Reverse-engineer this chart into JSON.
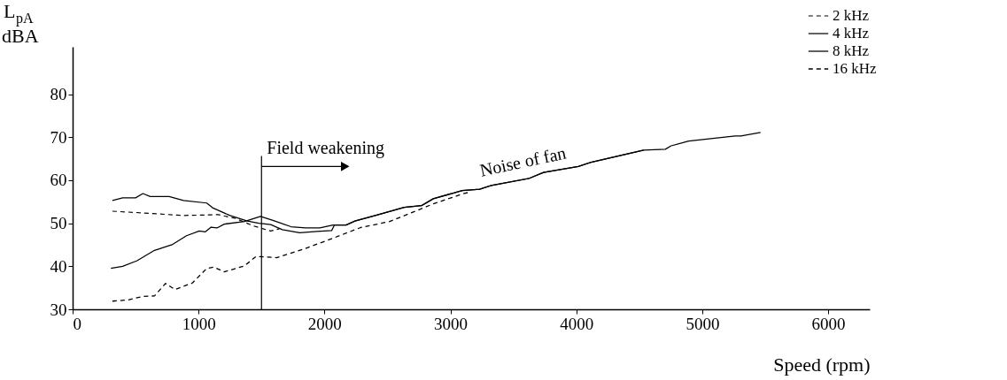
{
  "chart_data": {
    "type": "line",
    "xlabel": "Speed (rpm)",
    "ylabel": "L$_{pA}$ dBA",
    "xlim": [
      0,
      6330
    ],
    "ylim": [
      30,
      91
    ],
    "xticks": [
      0,
      1000,
      2000,
      3000,
      4000,
      5000,
      6000
    ],
    "yticks": [
      30,
      40,
      50,
      60,
      70,
      80
    ],
    "grid": false,
    "legend": "top right",
    "marker": "none",
    "series": [
      {
        "name": "2 kHz",
        "color": "#000000",
        "line_style": "dashed",
        "x": [
          316,
          558,
          881,
          1157,
          1296,
          1434,
          1573,
          1642
        ],
        "values": [
          52.8,
          52.4,
          51.8,
          52.0,
          51.1,
          49.4,
          48.2,
          48.7
        ]
      },
      {
        "name": "4 kHz",
        "color": "#000000",
        "line_style": "solid",
        "x": [
          316,
          397,
          500,
          558,
          616,
          766,
          881,
          1065,
          1111,
          1250,
          1388,
          1480,
          1573,
          1665,
          1803,
          1941,
          2057,
          2080,
          2172,
          2241,
          2403,
          2633,
          2771,
          2864,
          3094,
          3233,
          3325,
          3623,
          3739,
          4016,
          4110,
          4535,
          4707,
          4753,
          4892,
          5261,
          5307,
          5463
        ],
        "values": [
          55.3,
          55.9,
          55.9,
          56.9,
          56.2,
          56.2,
          55.3,
          54.7,
          53.6,
          51.8,
          50.5,
          50.0,
          49.7,
          48.5,
          47.8,
          48.1,
          48.3,
          49.6,
          49.6,
          50.5,
          51.8,
          53.7,
          54.1,
          55.7,
          57.6,
          57.9,
          58.8,
          60.4,
          61.8,
          63.2,
          64.1,
          67.0,
          67.2,
          68.0,
          69.1,
          70.3,
          70.3,
          71.1
        ]
      },
      {
        "name": "8 kHz",
        "color": "#000000",
        "line_style": "solid",
        "x": [
          304,
          397,
          512,
          650,
          789,
          904,
          1006,
          1054,
          1100,
          1146,
          1204,
          1365,
          1492,
          1596,
          1734,
          1849,
          1964,
          2068,
          2172,
          2241,
          2403,
          2633,
          2771,
          2864,
          3094,
          3233,
          3325,
          3623,
          3739,
          4016,
          4110,
          4535
        ],
        "values": [
          39.5,
          40.0,
          41.3,
          43.7,
          45.0,
          47.1,
          48.2,
          48.0,
          49.1,
          48.9,
          49.8,
          50.4,
          51.6,
          50.6,
          49.2,
          48.9,
          48.9,
          49.6,
          49.6,
          50.5,
          51.8,
          53.7,
          54.1,
          55.7,
          57.6,
          57.9,
          58.8,
          60.4,
          61.8,
          63.2,
          64.1,
          67.0
        ]
      },
      {
        "name": "16 kHz",
        "color": "#000000",
        "line_style": "dashed",
        "x": [
          316,
          443,
          558,
          650,
          738,
          812,
          950,
          1065,
          1123,
          1204,
          1365,
          1457,
          1619,
          1826,
          2057,
          2287,
          2518,
          2864,
          3094,
          3163
        ],
        "values": [
          31.9,
          32.2,
          33.0,
          33.1,
          36.0,
          34.6,
          36.1,
          39.5,
          39.8,
          38.7,
          40.1,
          42.3,
          42.0,
          43.9,
          46.4,
          49.0,
          50.4,
          54.5,
          56.8,
          57.3
        ]
      }
    ],
    "ref_lines": [
      {
        "axis": "x",
        "value": 1500
      }
    ],
    "annotations": [
      {
        "text": "Field weakening",
        "x": 1500,
        "y": 63.2
      },
      "Noise of fan"
    ]
  }
}
